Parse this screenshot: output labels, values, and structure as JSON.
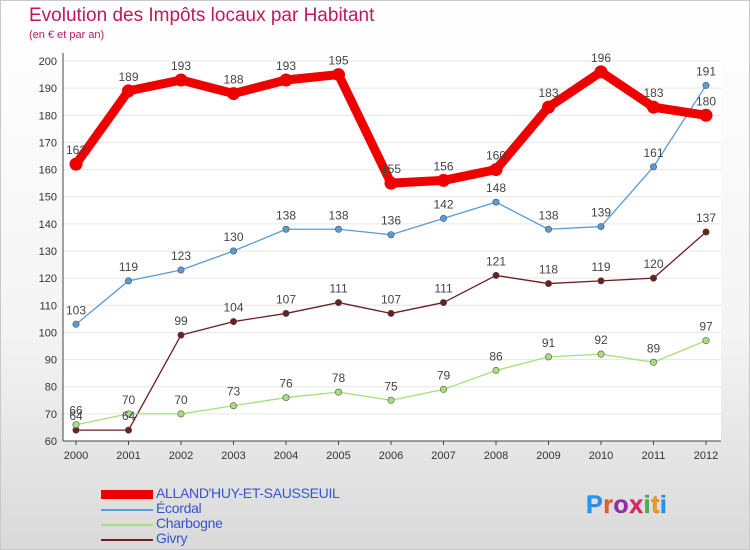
{
  "title": "Evolution des Impôts locaux par Habitant",
  "subtitle": "(en € et par an)",
  "brand": {
    "text": "Proxiti",
    "letter_colors": [
      "#2196f3",
      "#ff5722",
      "#9c27b0",
      "#e91e63",
      "#4caf50",
      "#ff9800",
      "#2196f3"
    ]
  },
  "chart_data": {
    "type": "line",
    "title": "Evolution des Impôts locaux par Habitant",
    "subtitle": "(en € et par an)",
    "x": [
      "2000",
      "2001",
      "2002",
      "2003",
      "2004",
      "2005",
      "2006",
      "2007",
      "2008",
      "2009",
      "2010",
      "2011",
      "2012"
    ],
    "ylim": [
      60,
      200
    ],
    "yticks": [
      60,
      70,
      80,
      90,
      100,
      110,
      120,
      130,
      140,
      150,
      160,
      170,
      180,
      190,
      200
    ],
    "grid": "horizontal",
    "legend_position": "bottom-left",
    "series": [
      {
        "name": "ALLAND'HUY-ET-SAUSSEUIL",
        "color": "#ee0000",
        "width": "thick",
        "values": [
          162,
          189,
          193,
          188,
          193,
          195,
          155,
          156,
          160,
          183,
          196,
          183,
          180
        ]
      },
      {
        "name": "Écordal",
        "color": "#5b9bd5",
        "width": "thin",
        "values": [
          103,
          119,
          123,
          130,
          138,
          138,
          136,
          142,
          148,
          138,
          139,
          161,
          191
        ]
      },
      {
        "name": "Charbogne",
        "color": "#a6e07a",
        "width": "thin",
        "values": [
          66,
          70,
          70,
          73,
          76,
          78,
          75,
          79,
          86,
          91,
          92,
          89,
          97
        ]
      },
      {
        "name": "Givry",
        "color": "#6b1f1f",
        "width": "thin",
        "values": [
          64,
          64,
          99,
          104,
          107,
          111,
          107,
          111,
          121,
          118,
          119,
          120,
          137
        ]
      }
    ]
  }
}
